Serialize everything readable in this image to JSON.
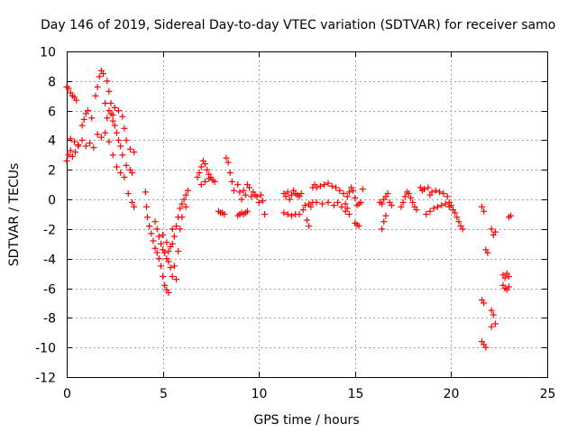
{
  "chart_data": {
    "type": "scatter",
    "title": "Day 146 of 2019, Sidereal Day-to-day VTEC variation (SDTVAR) for receiver samo",
    "xlabel": "GPS time / hours",
    "ylabel": "SDTVAR / TECUs",
    "xlim": [
      0,
      25
    ],
    "ylim": [
      -12,
      10
    ],
    "xticks": [
      0,
      5,
      10,
      15,
      20,
      25
    ],
    "yticks": [
      -12,
      -10,
      -8,
      -6,
      -4,
      -2,
      0,
      2,
      4,
      6,
      8,
      10
    ],
    "grid": true,
    "marker": "+",
    "color": "#ff0000",
    "series": [
      {
        "name": "SDTVAR",
        "points": [
          [
            0.0,
            2.6
          ],
          [
            0.1,
            3.0
          ],
          [
            0.2,
            3.3
          ],
          [
            0.3,
            2.9
          ],
          [
            0.45,
            3.2
          ],
          [
            0.6,
            3.6
          ],
          [
            0.8,
            4.0
          ],
          [
            1.0,
            3.6
          ],
          [
            1.2,
            3.8
          ],
          [
            1.4,
            3.5
          ],
          [
            1.6,
            4.4
          ],
          [
            1.8,
            4.2
          ],
          [
            2.0,
            4.5
          ],
          [
            2.2,
            3.9
          ],
          [
            2.4,
            3.0
          ],
          [
            2.6,
            2.2
          ],
          [
            2.8,
            1.8
          ],
          [
            3.0,
            1.5
          ],
          [
            3.2,
            0.4
          ],
          [
            3.4,
            -0.2
          ],
          [
            3.5,
            -0.5
          ],
          [
            0.0,
            7.6
          ],
          [
            0.1,
            7.5
          ],
          [
            0.2,
            7.2
          ],
          [
            0.3,
            7.0
          ],
          [
            0.4,
            6.9
          ],
          [
            0.5,
            6.7
          ],
          [
            0.2,
            4.1
          ],
          [
            0.4,
            3.9
          ],
          [
            0.6,
            3.7
          ],
          [
            0.8,
            5.0
          ],
          [
            0.9,
            5.4
          ],
          [
            1.0,
            5.8
          ],
          [
            1.1,
            6.0
          ],
          [
            1.3,
            5.5
          ],
          [
            1.5,
            7.0
          ],
          [
            1.6,
            7.6
          ],
          [
            1.7,
            8.3
          ],
          [
            1.8,
            8.7
          ],
          [
            1.9,
            8.5
          ],
          [
            2.1,
            8.0
          ],
          [
            2.2,
            7.3
          ],
          [
            2.3,
            6.5
          ],
          [
            2.4,
            5.7
          ],
          [
            2.5,
            5.0
          ],
          [
            2.7,
            4.0
          ],
          [
            2.9,
            3.0
          ],
          [
            3.1,
            2.3
          ],
          [
            3.3,
            2.0
          ],
          [
            3.4,
            1.8
          ],
          [
            2.1,
            5.5
          ],
          [
            2.3,
            5.8
          ],
          [
            2.5,
            6.2
          ],
          [
            2.7,
            6.0
          ],
          [
            2.9,
            5.6
          ],
          [
            3.0,
            4.8
          ],
          [
            3.1,
            4.0
          ],
          [
            3.3,
            3.4
          ],
          [
            3.5,
            3.2
          ],
          [
            2.0,
            6.5
          ],
          [
            2.2,
            6.0
          ],
          [
            2.4,
            5.3
          ],
          [
            2.6,
            4.5
          ],
          [
            2.8,
            3.6
          ],
          [
            4.1,
            0.5
          ],
          [
            4.15,
            -0.5
          ],
          [
            4.2,
            -1.2
          ],
          [
            4.3,
            -1.8
          ],
          [
            4.4,
            -2.3
          ],
          [
            4.5,
            -2.8
          ],
          [
            4.6,
            -3.3
          ],
          [
            4.7,
            -3.6
          ],
          [
            4.8,
            -4.0
          ],
          [
            4.9,
            -4.5
          ],
          [
            5.0,
            -5.2
          ],
          [
            5.1,
            -5.8
          ],
          [
            5.2,
            -6.1
          ],
          [
            5.3,
            -6.3
          ],
          [
            4.6,
            -1.5
          ],
          [
            4.7,
            -2.0
          ],
          [
            4.8,
            -2.5
          ],
          [
            4.9,
            -3.0
          ],
          [
            5.0,
            -3.4
          ],
          [
            5.1,
            -3.6
          ],
          [
            5.2,
            -4.0
          ],
          [
            5.3,
            -4.2
          ],
          [
            5.4,
            -4.6
          ],
          [
            5.5,
            -5.2
          ],
          [
            5.0,
            -2.4
          ],
          [
            5.2,
            -2.9
          ],
          [
            5.4,
            -3.2
          ],
          [
            5.5,
            -3.0
          ],
          [
            5.6,
            -2.5
          ],
          [
            5.7,
            -1.8
          ],
          [
            5.8,
            -1.2
          ],
          [
            5.9,
            -0.6
          ],
          [
            6.0,
            -0.3
          ],
          [
            6.1,
            0.0
          ],
          [
            6.2,
            0.3
          ],
          [
            6.3,
            0.6
          ],
          [
            5.3,
            -3.5
          ],
          [
            5.5,
            -2.0
          ],
          [
            5.6,
            -4.5
          ],
          [
            5.7,
            -5.4
          ],
          [
            5.8,
            -3.5
          ],
          [
            5.9,
            -2.0
          ],
          [
            6.0,
            -1.2
          ],
          [
            6.2,
            -0.5
          ],
          [
            6.8,
            1.5
          ],
          [
            6.9,
            1.8
          ],
          [
            7.0,
            2.2
          ],
          [
            7.1,
            2.6
          ],
          [
            7.2,
            2.4
          ],
          [
            7.3,
            2.0
          ],
          [
            7.4,
            1.7
          ],
          [
            7.5,
            1.5
          ],
          [
            7.6,
            1.3
          ],
          [
            7.7,
            1.2
          ],
          [
            7.0,
            1.0
          ],
          [
            7.2,
            1.2
          ],
          [
            7.4,
            1.4
          ],
          [
            7.9,
            -0.8
          ],
          [
            8.0,
            -0.9
          ],
          [
            8.1,
            -0.9
          ],
          [
            8.2,
            -1.0
          ],
          [
            8.3,
            2.8
          ],
          [
            8.4,
            2.5
          ],
          [
            8.5,
            1.8
          ],
          [
            8.6,
            1.2
          ],
          [
            8.7,
            0.6
          ],
          [
            8.9,
            -1.1
          ],
          [
            9.0,
            -1.0
          ],
          [
            9.1,
            -0.9
          ],
          [
            9.2,
            -1.0
          ],
          [
            9.3,
            -0.9
          ],
          [
            9.4,
            -0.8
          ],
          [
            8.9,
            1.0
          ],
          [
            9.0,
            0.5
          ],
          [
            9.1,
            0.0
          ],
          [
            9.2,
            0.6
          ],
          [
            9.3,
            0.3
          ],
          [
            9.4,
            1.0
          ],
          [
            9.5,
            0.8
          ],
          [
            9.6,
            0.2
          ],
          [
            9.7,
            0.5
          ],
          [
            9.8,
            0.3
          ],
          [
            9.9,
            0.2
          ],
          [
            10.0,
            -0.2
          ],
          [
            10.1,
            0.3
          ],
          [
            10.2,
            -0.1
          ],
          [
            10.3,
            -1.0
          ],
          [
            11.3,
            0.4
          ],
          [
            11.4,
            0.2
          ],
          [
            11.5,
            0.5
          ],
          [
            11.6,
            0.0
          ],
          [
            11.7,
            0.3
          ],
          [
            11.8,
            0.6
          ],
          [
            11.9,
            0.4
          ],
          [
            12.0,
            0.3
          ],
          [
            12.1,
            0.2
          ],
          [
            12.2,
            0.4
          ],
          [
            11.3,
            -0.9
          ],
          [
            11.5,
            -1.0
          ],
          [
            11.7,
            -1.1
          ],
          [
            11.9,
            -1.0
          ],
          [
            12.1,
            -1.0
          ],
          [
            12.3,
            -0.7
          ],
          [
            12.4,
            -0.4
          ],
          [
            12.5,
            -1.4
          ],
          [
            12.6,
            -1.8
          ],
          [
            12.7,
            -0.5
          ],
          [
            12.8,
            0.8
          ],
          [
            12.9,
            1.0
          ],
          [
            13.0,
            0.8
          ],
          [
            13.2,
            0.9
          ],
          [
            13.4,
            1.0
          ],
          [
            13.6,
            1.1
          ],
          [
            13.8,
            0.9
          ],
          [
            14.0,
            0.8
          ],
          [
            14.2,
            0.6
          ],
          [
            14.4,
            0.4
          ],
          [
            12.6,
            -0.3
          ],
          [
            12.8,
            -0.2
          ],
          [
            13.0,
            -0.2
          ],
          [
            13.3,
            -0.3
          ],
          [
            13.6,
            -0.2
          ],
          [
            13.9,
            -0.4
          ],
          [
            14.1,
            -0.2
          ],
          [
            14.3,
            -0.5
          ],
          [
            14.5,
            -0.3
          ],
          [
            14.6,
            0.2
          ],
          [
            14.7,
            0.5
          ],
          [
            14.8,
            0.8
          ],
          [
            14.9,
            0.6
          ],
          [
            15.0,
            0.1
          ],
          [
            15.1,
            -0.4
          ],
          [
            15.2,
            -0.3
          ],
          [
            15.3,
            -0.2
          ],
          [
            15.4,
            0.7
          ],
          [
            14.5,
            -0.8
          ],
          [
            14.6,
            -0.6
          ],
          [
            14.7,
            -1.0
          ],
          [
            15.0,
            -1.6
          ],
          [
            15.1,
            -1.7
          ],
          [
            15.2,
            -1.8
          ],
          [
            16.3,
            -0.2
          ],
          [
            16.4,
            -0.3
          ],
          [
            16.5,
            0.0
          ],
          [
            16.6,
            0.2
          ],
          [
            16.7,
            0.4
          ],
          [
            16.8,
            -0.2
          ],
          [
            16.9,
            -0.4
          ],
          [
            16.4,
            -2.0
          ],
          [
            16.5,
            -1.5
          ],
          [
            16.6,
            -1.1
          ],
          [
            17.4,
            -0.5
          ],
          [
            17.5,
            -0.2
          ],
          [
            17.6,
            0.2
          ],
          [
            17.7,
            0.5
          ],
          [
            17.8,
            0.4
          ],
          [
            17.9,
            0.1
          ],
          [
            18.0,
            -0.2
          ],
          [
            18.1,
            -0.5
          ],
          [
            18.2,
            -0.7
          ],
          [
            18.4,
            0.8
          ],
          [
            18.5,
            0.6
          ],
          [
            18.6,
            0.7
          ],
          [
            18.8,
            0.8
          ],
          [
            18.9,
            0.3
          ],
          [
            19.0,
            0.5
          ],
          [
            19.2,
            0.6
          ],
          [
            19.4,
            0.5
          ],
          [
            19.6,
            0.4
          ],
          [
            19.8,
            0.2
          ],
          [
            18.7,
            -1.0
          ],
          [
            18.9,
            -0.8
          ],
          [
            19.1,
            -0.6
          ],
          [
            19.3,
            -0.5
          ],
          [
            19.5,
            -0.4
          ],
          [
            19.7,
            -0.3
          ],
          [
            19.9,
            -0.5
          ],
          [
            19.9,
            -0.2
          ],
          [
            20.0,
            -0.4
          ],
          [
            20.1,
            -0.7
          ],
          [
            20.2,
            -0.9
          ],
          [
            20.3,
            -1.2
          ],
          [
            20.4,
            -1.5
          ],
          [
            20.5,
            -1.8
          ],
          [
            20.6,
            -2.0
          ],
          [
            21.6,
            -0.5
          ],
          [
            21.7,
            -0.8
          ],
          [
            21.8,
            -3.4
          ],
          [
            21.9,
            -3.6
          ],
          [
            21.6,
            -6.8
          ],
          [
            21.7,
            -7.0
          ],
          [
            21.6,
            -9.6
          ],
          [
            21.7,
            -9.8
          ],
          [
            21.8,
            -10.0
          ],
          [
            22.1,
            -2.0
          ],
          [
            22.2,
            -2.4
          ],
          [
            22.3,
            -2.2
          ],
          [
            22.1,
            -7.5
          ],
          [
            22.2,
            -7.8
          ],
          [
            22.3,
            -8.4
          ],
          [
            22.1,
            -8.6
          ],
          [
            22.7,
            -5.1
          ],
          [
            22.8,
            -5.3
          ],
          [
            22.9,
            -5.0
          ],
          [
            23.0,
            -5.2
          ],
          [
            22.7,
            -5.8
          ],
          [
            22.8,
            -6.0
          ],
          [
            22.9,
            -6.1
          ],
          [
            23.0,
            -5.9
          ],
          [
            23.0,
            -1.2
          ],
          [
            23.1,
            -1.1
          ]
        ]
      }
    ]
  }
}
